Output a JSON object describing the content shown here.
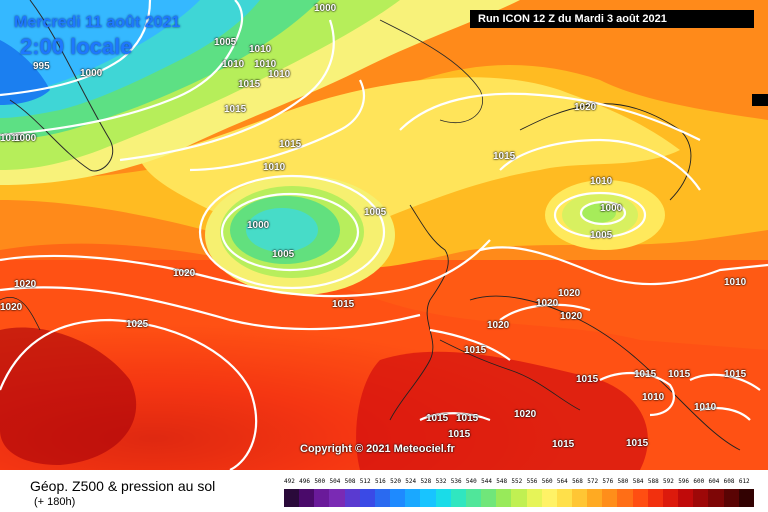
{
  "header": {
    "date": "Mercredi 11 août 2021",
    "time": "2:00 locale",
    "run": "Run ICON 12 Z du Mardi 3 août 2021"
  },
  "footer": {
    "title": "Géop. Z500 & pression au sol",
    "subtitle": "(+ 180h)",
    "copyright": "Copyright © 2021 Meteociel.fr"
  },
  "legend_scale": [
    492,
    496,
    500,
    504,
    508,
    512,
    516,
    520,
    524,
    528,
    532,
    536,
    540,
    544,
    548,
    552,
    556,
    560,
    564,
    568,
    572,
    576,
    580,
    584,
    588,
    592,
    596,
    600,
    604,
    608,
    612
  ],
  "isobar_labels": [
    {
      "text": "1000"
    },
    {
      "text": "995"
    },
    {
      "text": "1000"
    },
    {
      "text": "1005"
    },
    {
      "text": "1010"
    },
    {
      "text": "1010"
    },
    {
      "text": "1010"
    },
    {
      "text": "1010"
    },
    {
      "text": "1015"
    },
    {
      "text": "1015"
    },
    {
      "text": "1015"
    },
    {
      "text": "1010"
    },
    {
      "text": "1000"
    },
    {
      "text": "1005"
    },
    {
      "text": "1005"
    },
    {
      "text": "1020"
    },
    {
      "text": "1015"
    },
    {
      "text": "1010"
    },
    {
      "text": "1000"
    },
    {
      "text": "1005"
    },
    {
      "text": "1020"
    },
    {
      "text": "1020"
    },
    {
      "text": "1020"
    },
    {
      "text": "1025"
    },
    {
      "text": "1015"
    },
    {
      "text": "1020"
    },
    {
      "text": "1020"
    },
    {
      "text": "1020"
    },
    {
      "text": "1020"
    },
    {
      "text": "1010"
    },
    {
      "text": "1015"
    },
    {
      "text": "1015"
    },
    {
      "text": "1015"
    },
    {
      "text": "1015"
    },
    {
      "text": "1015"
    },
    {
      "text": "1010"
    },
    {
      "text": "1010"
    },
    {
      "text": "1015"
    },
    {
      "text": "1015"
    },
    {
      "text": "1020"
    },
    {
      "text": "1015"
    },
    {
      "text": "1015"
    },
    {
      "text": "1015"
    },
    {
      "text": "1010"
    },
    {
      "text": "1010"
    }
  ]
}
